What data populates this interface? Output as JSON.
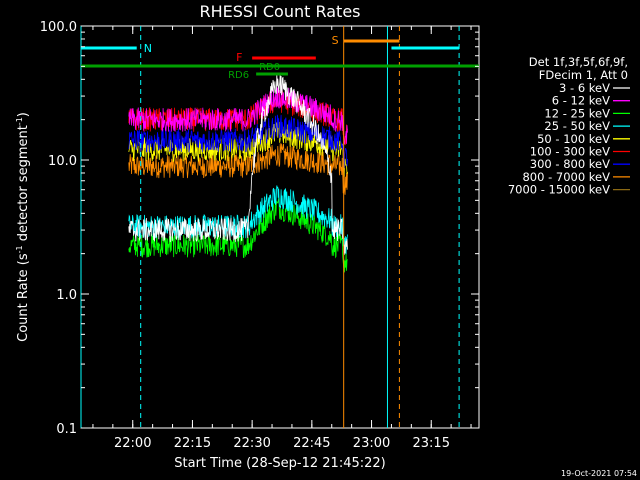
{
  "chart_data": {
    "type": "line",
    "title": "RHESSI Count Rates",
    "xlabel": "Start Time (28-Sep-12 21:45:22)",
    "ylabel_main": "Count Rate (s",
    "ylabel_sup1": "-1",
    "ylabel_mid": " detector segment",
    "ylabel_sup2": "-1",
    "ylabel_end": ")",
    "y_scale": "log",
    "ylim": [
      0.1,
      100.0
    ],
    "xlim": [
      "21:47",
      "23:27"
    ],
    "x_ticks": [
      "22:00",
      "22:15",
      "22:30",
      "22:45",
      "23:00",
      "23:15"
    ],
    "y_ticks": [
      "100.0",
      "10.0",
      "1.0",
      "0.1"
    ],
    "timestamp": "19-Oct-2021 07:54",
    "legend_header": [
      "Det 1f,3f,5f,6f,9f,",
      "FDecim 1, Att 0"
    ],
    "series": [
      {
        "name": "3 - 6 keV",
        "color": "#ffffff",
        "level": 3.0,
        "peak": 38
      },
      {
        "name": "6 - 12 keV",
        "color": "#ff00ff",
        "level": 20,
        "peak": 30
      },
      {
        "name": "12 - 25 keV",
        "color": "#00ff00",
        "level": 2.3,
        "peak": 4.5
      },
      {
        "name": "25 - 50 keV",
        "color": "#00ffff",
        "level": 3.2,
        "peak": 5.5
      },
      {
        "name": "50 - 100 keV",
        "color": "#ffff00",
        "level": 12,
        "peak": 16
      },
      {
        "name": "100 - 300 keV",
        "color": "#ff0000",
        "level": 20,
        "peak": 28
      },
      {
        "name": "300 - 800 keV",
        "color": "#0000ff",
        "level": 14,
        "peak": 18
      },
      {
        "name": "800 - 7000 keV",
        "color": "#ff8c00",
        "level": 9,
        "peak": 11
      },
      {
        "name": "7000 - 15000 keV",
        "color": "#8b6914",
        "level": 0,
        "peak": 0
      }
    ],
    "annotations": [
      {
        "label": "N",
        "color": "#00ffff"
      },
      {
        "label": "F",
        "color": "#ff0000"
      },
      {
        "label": "S",
        "color": "#ff8c00"
      },
      {
        "label": "RD0",
        "color": "#00a000"
      },
      {
        "label": "RD6",
        "color": "#00a000"
      }
    ],
    "intervals": {
      "night": [
        [
          "21:47",
          "22:01"
        ],
        [
          "23:05",
          "23:22"
        ]
      ],
      "saa": [
        "22:53",
        "23:07"
      ],
      "flare": [
        "22:30",
        "22:46"
      ],
      "rd0": [
        "22:31",
        "22:38"
      ],
      "rd6": [
        "22:31",
        "22:39"
      ],
      "attenuator": [
        "21:47",
        "23:27"
      ],
      "data": [
        "21:59",
        "22:54"
      ],
      "solid_vlines": [
        "21:47",
        "22:53",
        "23:04"
      ],
      "dashed_vlines": [
        "22:02",
        "23:07",
        "23:22"
      ]
    }
  }
}
